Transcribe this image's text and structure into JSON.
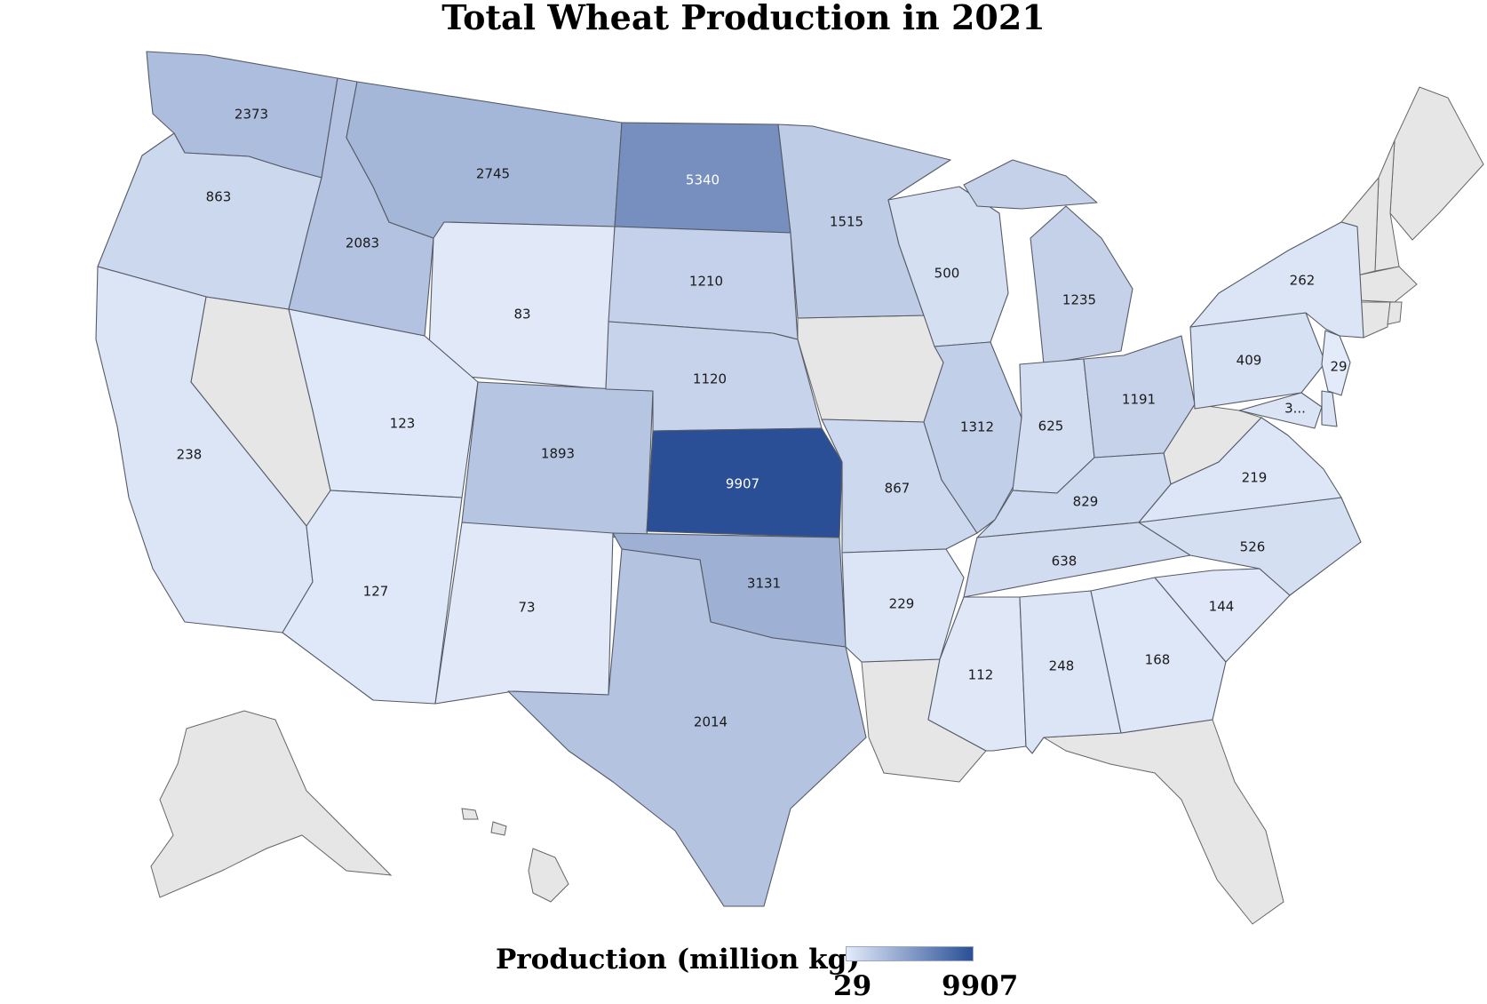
{
  "title": "Total Wheat Production in 2021",
  "legend": {
    "title": "Production (million kg)",
    "min": 29,
    "max": 9907,
    "min_label": "29",
    "max_label": "9907",
    "color_low": "#e3ebfa",
    "color_high": "#2a4f96"
  },
  "colors": {
    "no_data": "#e6e6e6",
    "label_dark": "#1a1a1a",
    "label_light": "#ffffff"
  },
  "chart_data": {
    "type": "choropleth",
    "title": "Total Wheat Production in 2021",
    "unit": "million kg",
    "range": [
      29,
      9907
    ],
    "states": [
      {
        "state": "Washington",
        "value": 2373,
        "label": "2373"
      },
      {
        "state": "Oregon",
        "value": 863,
        "label": "863"
      },
      {
        "state": "California",
        "value": 238,
        "label": "238"
      },
      {
        "state": "Idaho",
        "value": 2083,
        "label": "2083"
      },
      {
        "state": "Montana",
        "value": 2745,
        "label": "2745"
      },
      {
        "state": "Wyoming",
        "value": 83,
        "label": "83"
      },
      {
        "state": "Utah",
        "value": 123,
        "label": "123"
      },
      {
        "state": "Arizona",
        "value": 127,
        "label": "127"
      },
      {
        "state": "Colorado",
        "value": 1893,
        "label": "1893"
      },
      {
        "state": "New Mexico",
        "value": 73,
        "label": "73"
      },
      {
        "state": "North Dakota",
        "value": 5340,
        "label": "5340"
      },
      {
        "state": "South Dakota",
        "value": 1210,
        "label": "1210"
      },
      {
        "state": "Nebraska",
        "value": 1120,
        "label": "1120"
      },
      {
        "state": "Kansas",
        "value": 9907,
        "label": "9907"
      },
      {
        "state": "Oklahoma",
        "value": 3131,
        "label": "3131"
      },
      {
        "state": "Texas",
        "value": 2014,
        "label": "2014"
      },
      {
        "state": "Minnesota",
        "value": 1515,
        "label": "1515"
      },
      {
        "state": "Missouri",
        "value": 867,
        "label": "867"
      },
      {
        "state": "Arkansas",
        "value": 229,
        "label": "229"
      },
      {
        "state": "Wisconsin",
        "value": 500,
        "label": "500"
      },
      {
        "state": "Illinois",
        "value": 1312,
        "label": "1312"
      },
      {
        "state": "Michigan",
        "value": 1235,
        "label": "1235"
      },
      {
        "state": "Indiana",
        "value": 625,
        "label": "625"
      },
      {
        "state": "Ohio",
        "value": 1191,
        "label": "1191"
      },
      {
        "state": "Kentucky",
        "value": 829,
        "label": "829"
      },
      {
        "state": "Tennessee",
        "value": 638,
        "label": "638"
      },
      {
        "state": "Mississippi",
        "value": 112,
        "label": "112"
      },
      {
        "state": "Alabama",
        "value": 248,
        "label": "248"
      },
      {
        "state": "Georgia",
        "value": 168,
        "label": "168"
      },
      {
        "state": "South Carolina",
        "value": 144,
        "label": "144"
      },
      {
        "state": "North Carolina",
        "value": 526,
        "label": "526"
      },
      {
        "state": "Virginia",
        "value": 219,
        "label": "219"
      },
      {
        "state": "Pennsylvania",
        "value": 409,
        "label": "409"
      },
      {
        "state": "New York",
        "value": 262,
        "label": "262"
      },
      {
        "state": "New Jersey",
        "value": 29,
        "label": "29"
      },
      {
        "state": "Maryland",
        "value": null,
        "label": "3..."
      },
      {
        "state": "Delaware",
        "value": null,
        "label": ""
      }
    ],
    "no_data_states": [
      "Nevada",
      "Iowa",
      "Louisiana",
      "Florida",
      "West Virginia",
      "Maine",
      "New Hampshire",
      "Vermont",
      "Massachusetts",
      "Connecticut",
      "Rhode Island",
      "Alaska",
      "Hawaii"
    ]
  }
}
